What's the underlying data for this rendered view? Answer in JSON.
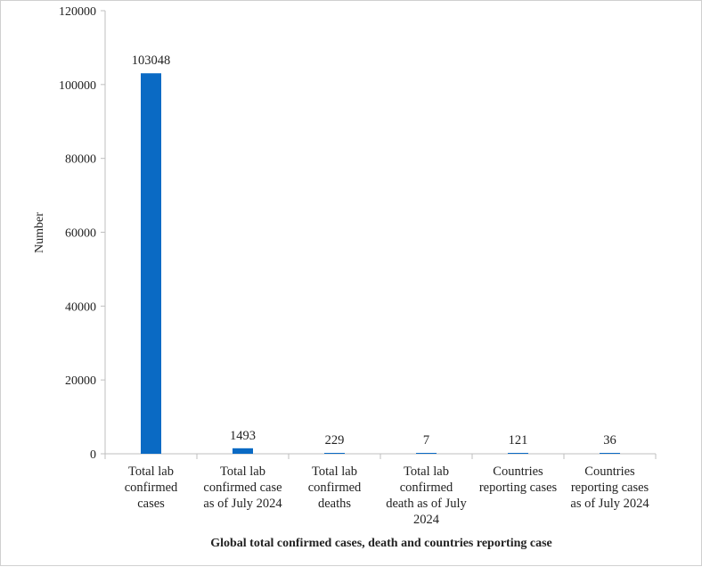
{
  "chart_data": {
    "type": "bar",
    "categories": [
      [
        "Total lab",
        "confirmed",
        "cases"
      ],
      [
        "Total lab",
        "confirmed case",
        "as of July 2024"
      ],
      [
        "Total lab",
        "confirmed",
        "deaths"
      ],
      [
        "Total lab",
        "confirmed",
        "death as of July",
        "2024"
      ],
      [
        "Countries",
        "reporting cases"
      ],
      [
        "Countries",
        "reporting cases",
        "as of July 2024"
      ]
    ],
    "values": [
      103048,
      1493,
      229,
      7,
      121,
      36
    ],
    "data_labels": [
      "103048",
      "1493",
      "229",
      "7",
      "121",
      "36"
    ],
    "ylabel": "Number",
    "xlabel": "Global total confirmed cases, death and countries reporting case",
    "ylim": [
      0,
      120000
    ],
    "yticks": [
      "0",
      "20000",
      "40000",
      "60000",
      "80000",
      "100000",
      "120000"
    ],
    "grid": false,
    "bar_color": "#0a6ac4",
    "axis_color": "#bfbfbf"
  }
}
